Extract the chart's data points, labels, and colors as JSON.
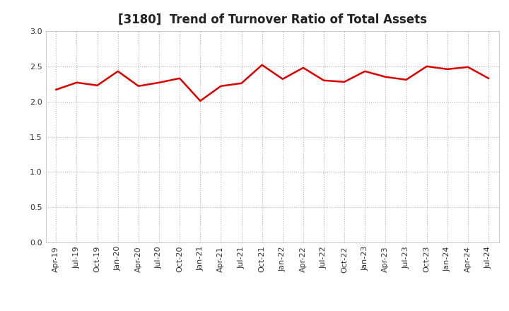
{
  "title": "[3180]  Trend of Turnover Ratio of Total Assets",
  "labels": [
    "Apr-19",
    "Jul-19",
    "Oct-19",
    "Jan-20",
    "Apr-20",
    "Jul-20",
    "Oct-20",
    "Jan-21",
    "Apr-21",
    "Jul-21",
    "Oct-21",
    "Jan-22",
    "Apr-22",
    "Jul-22",
    "Oct-22",
    "Jan-23",
    "Apr-23",
    "Jul-23",
    "Oct-23",
    "Jan-24",
    "Apr-24",
    "Jul-24"
  ],
  "values": [
    2.17,
    2.27,
    2.23,
    2.43,
    2.22,
    2.27,
    2.33,
    2.01,
    2.22,
    2.26,
    2.52,
    2.32,
    2.48,
    2.3,
    2.28,
    2.43,
    2.35,
    2.31,
    2.5,
    2.46,
    2.49,
    2.33
  ],
  "line_color": "#dd0000",
  "line_width": 1.8,
  "ylim": [
    0.0,
    3.0
  ],
  "yticks": [
    0.0,
    0.5,
    1.0,
    1.5,
    2.0,
    2.5,
    3.0
  ],
  "grid_color": "#aaaaaa",
  "bg_color": "#ffffff",
  "title_fontsize": 12,
  "tick_fontsize": 8
}
